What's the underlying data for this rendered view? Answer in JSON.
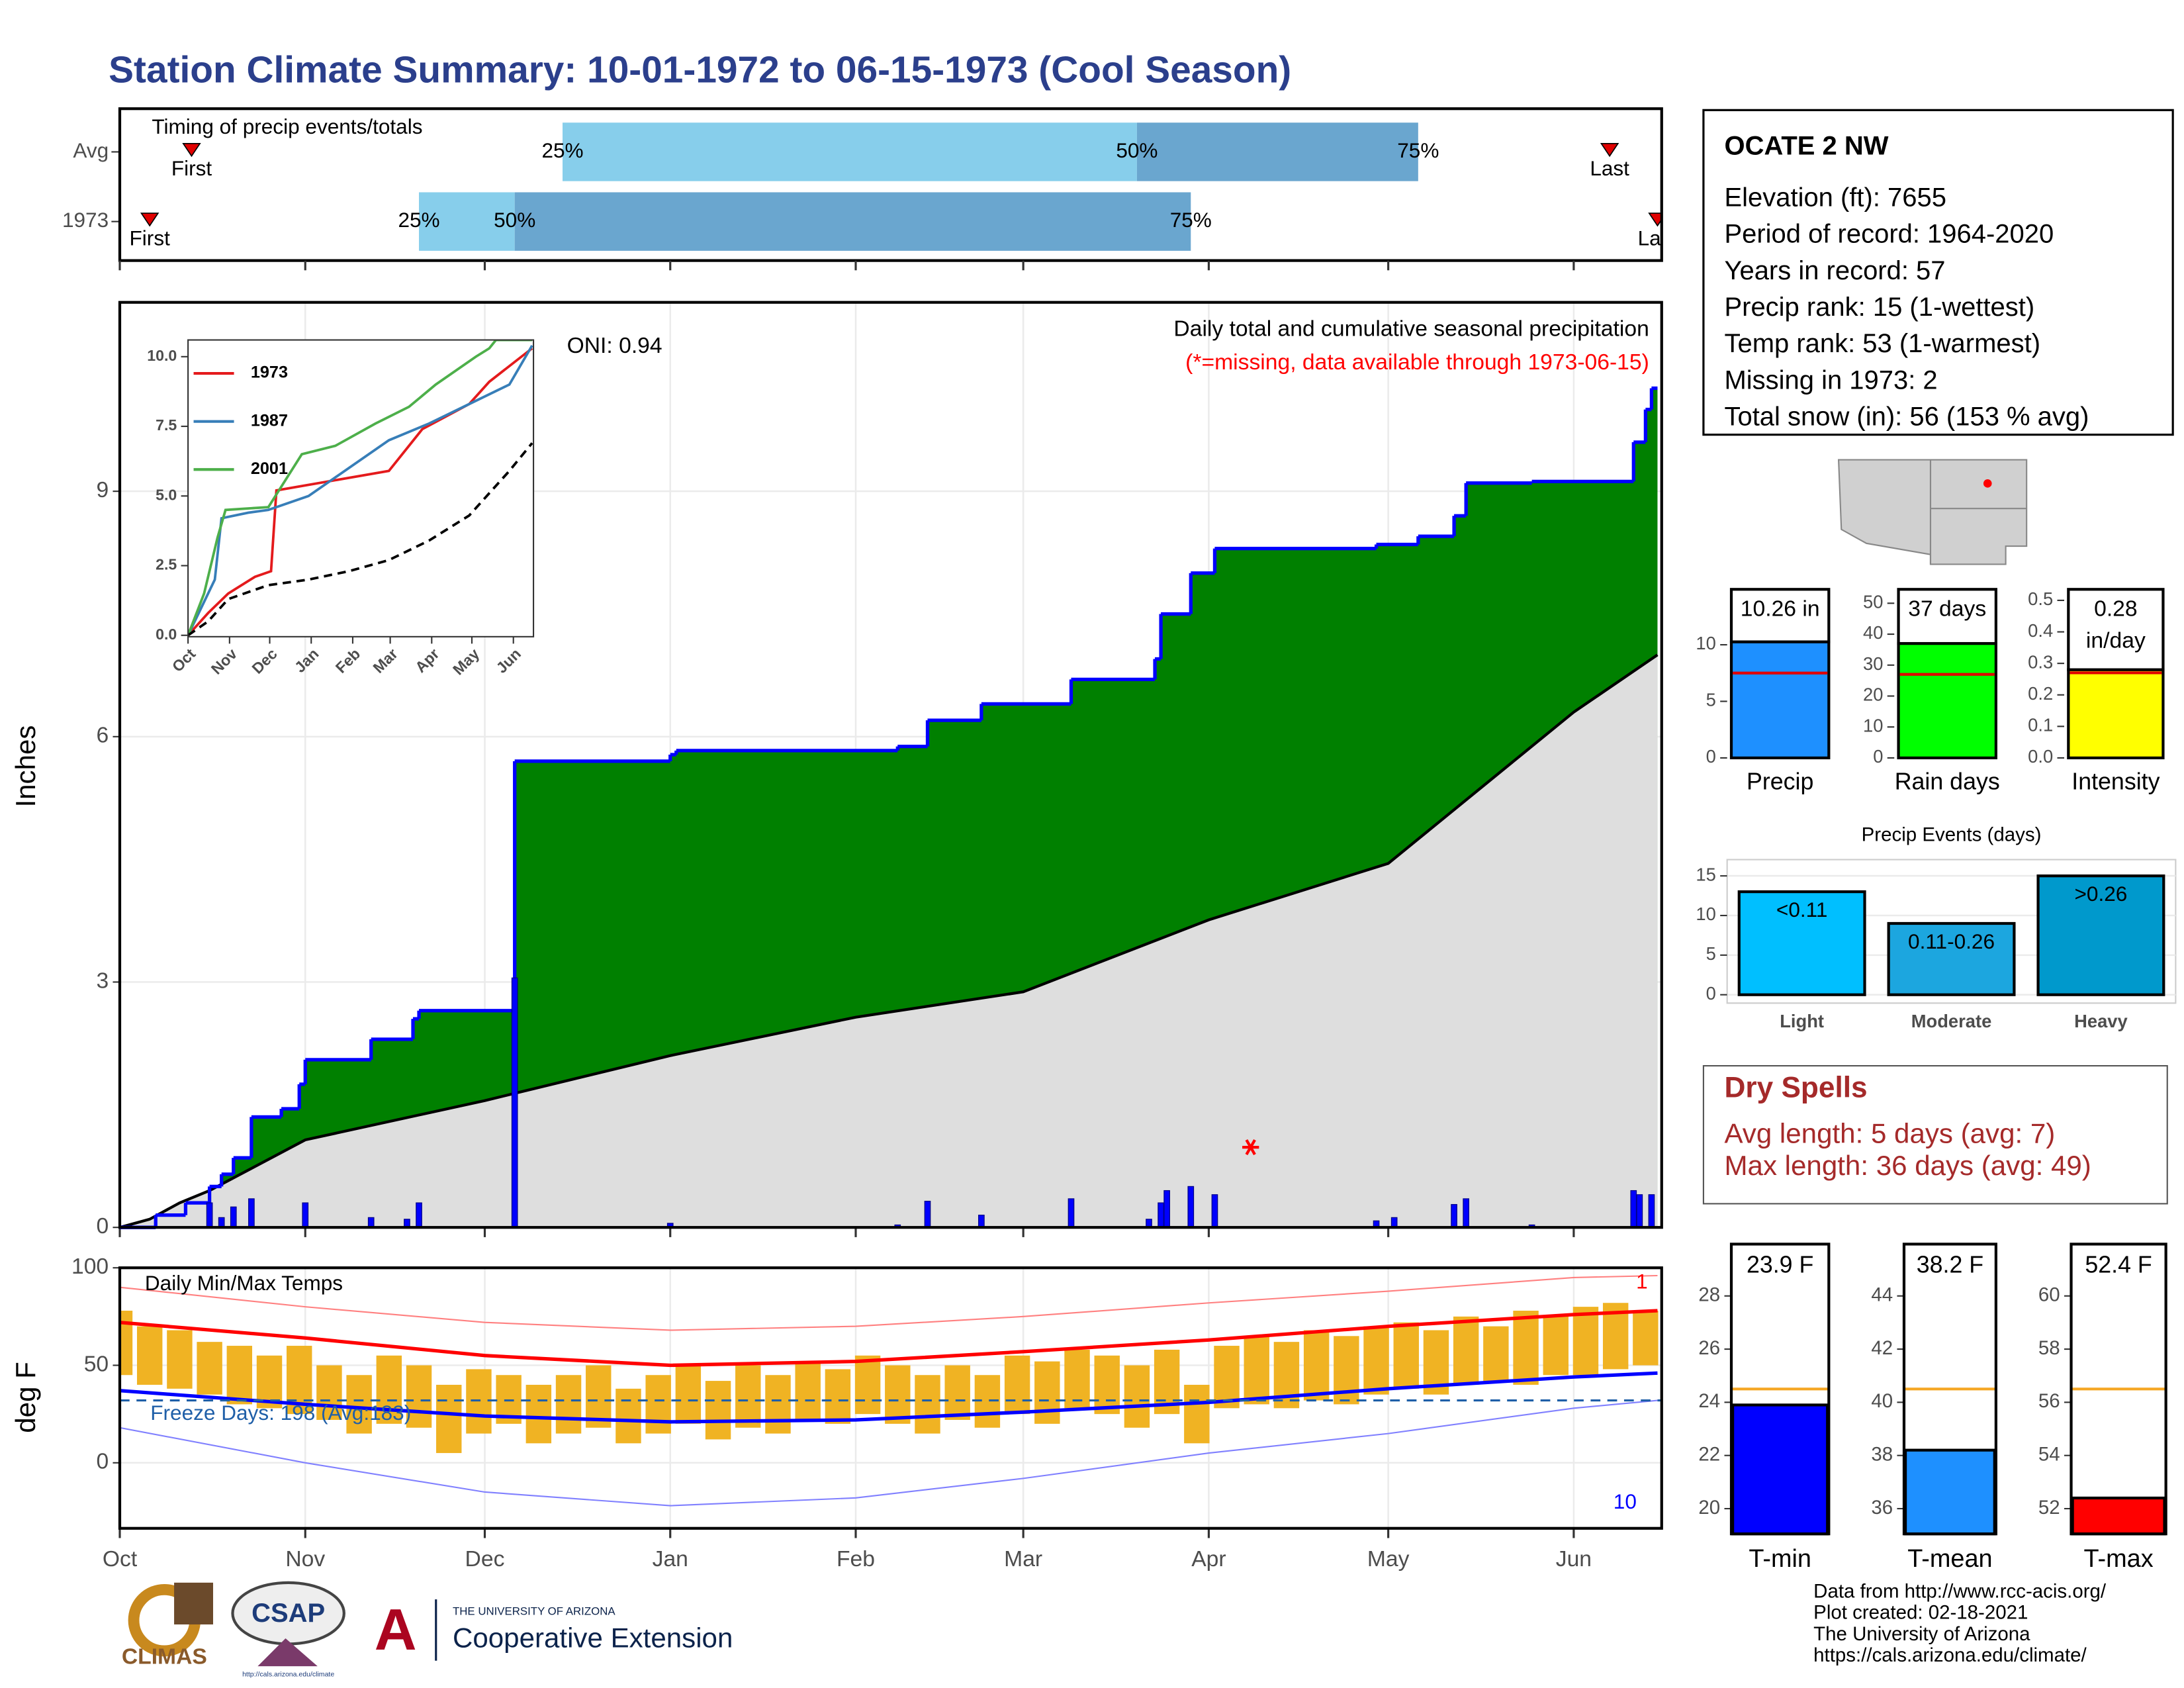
{
  "title": "Station Climate Summary: 10-01-1972 to 06-15-1973 (Cool Season)",
  "station": {
    "name": "OCATE 2 NW",
    "lines": [
      "Elevation (ft): 7655",
      "Period of record: 1964-2020",
      "Years in record: 57",
      "Precip rank: 15 (1-wettest)",
      "Temp rank: 53 (1-warmest)",
      "Missing in 1973: 2",
      "Total snow (in): 56 (153 % avg)"
    ]
  },
  "dry_spells": {
    "title": "Dry Spells",
    "lines": [
      "Avg length: 5 days (avg: 7)",
      "Max length: 36 days (avg: 49)"
    ],
    "color": "#a52a2a"
  },
  "footer": [
    "Data from http://www.rcc-acis.org/",
    "Plot created: 02-18-2021",
    "The University of Arizona",
    "https://cals.arizona.edu/climate/"
  ],
  "logos": {
    "climas": "CLIMAS",
    "csap": "CSAP",
    "csap_url": "http://cals.arizona.edu/climate",
    "ua": "THE UNIVERSITY OF ARIZONA",
    "extension": "Cooperative Extension"
  },
  "chart_data": [
    {
      "type": "range",
      "title": "Timing of precip events/totals",
      "xlim": [
        0,
        257
      ],
      "labels": {
        "first": "First",
        "last": "Last",
        "p25": "25%",
        "p50": "50%",
        "p75": "75%"
      },
      "colors": [
        "#87ceeb",
        "#6aa6cf"
      ],
      "marker_color": "#e00000",
      "rows": [
        {
          "name": "Avg",
          "first": 12,
          "p25": 74,
          "p50": 170,
          "p75": 217,
          "last": 249
        },
        {
          "name": "1973",
          "first": 5,
          "p25": 50,
          "p50": 66,
          "p75": 179,
          "last": 257
        }
      ]
    },
    {
      "type": "cumulative",
      "ylabel": "Inches",
      "oni": "ONI: 0.94",
      "subtitle": "Daily total and cumulative seasonal precipitation",
      "note": "(*=missing, data available through 1973-06-15)",
      "note_color": "#ff0000",
      "xlim": [
        0,
        257
      ],
      "xticks": [
        0,
        31,
        61,
        92,
        123,
        151,
        182,
        212,
        243
      ],
      "ylim": [
        0,
        11.31
      ],
      "yticks": [
        0,
        3,
        6,
        9
      ],
      "grid": true,
      "cumulative": {
        "color": "#008000",
        "line_color": "#0000ff",
        "x": [
          0,
          6,
          11,
          15,
          17,
          19,
          22,
          27,
          30,
          31,
          42,
          49,
          50,
          66,
          92,
          93,
          130,
          135,
          144,
          159,
          173,
          174,
          179,
          183,
          210,
          217,
          223,
          225,
          236,
          253,
          255,
          256
        ],
        "values": [
          0,
          0.15,
          0.3,
          0.5,
          0.65,
          0.85,
          1.35,
          1.45,
          1.75,
          2.05,
          2.3,
          2.55,
          2.65,
          5.7,
          5.78,
          5.83,
          5.88,
          6.2,
          6.4,
          6.7,
          6.95,
          7.5,
          8.0,
          8.3,
          8.35,
          8.45,
          8.7,
          9.1,
          9.12,
          9.6,
          10.0,
          10.26
        ]
      },
      "average": {
        "color": "#dedede",
        "x": [
          0,
          5,
          10,
          15,
          31,
          61,
          92,
          123,
          151,
          182,
          212,
          243,
          257
        ],
        "values": [
          0,
          0.1,
          0.3,
          0.45,
          1.07,
          1.55,
          2.1,
          2.57,
          2.88,
          3.76,
          4.45,
          6.3,
          7.0
        ]
      },
      "daily": {
        "color": "#0000ff",
        "x": [
          15,
          17,
          19,
          22,
          31,
          42,
          48,
          50,
          66,
          92,
          130,
          135,
          144,
          159,
          172,
          174,
          175,
          179,
          183,
          210,
          213,
          223,
          225,
          236,
          253,
          254,
          256
        ],
        "values": [
          0.3,
          0.12,
          0.25,
          0.35,
          0.3,
          0.12,
          0.1,
          0.3,
          3.05,
          0.05,
          0.03,
          0.32,
          0.15,
          0.35,
          0.1,
          0.3,
          0.45,
          0.5,
          0.4,
          0.08,
          0.12,
          0.28,
          0.35,
          0.03,
          0.45,
          0.4,
          0.4
        ]
      },
      "missing": {
        "color": "#ff0000",
        "x": [
          189
        ],
        "values": [
          0.98
        ]
      }
    },
    {
      "type": "line",
      "xlim": [
        0,
        258
      ],
      "xticks": [
        {
          "value": 0,
          "label": "Oct"
        },
        {
          "value": 31,
          "label": "Nov"
        },
        {
          "value": 61,
          "label": "Dec"
        },
        {
          "value": 92,
          "label": "Jan"
        },
        {
          "value": 123,
          "label": "Feb"
        },
        {
          "value": 151,
          "label": "Mar"
        },
        {
          "value": 182,
          "label": "Apr"
        },
        {
          "value": 212,
          "label": "May"
        },
        {
          "value": 243,
          "label": "Jun"
        }
      ],
      "ylim": [
        0,
        10.6
      ],
      "yticks": [
        {
          "value": 0,
          "label": "0.0"
        },
        2.5,
        {
          "value": 5,
          "label": "5.0"
        },
        7.5,
        {
          "value": 10,
          "label": "10.0"
        }
      ],
      "series": [
        {
          "name": "1973",
          "color": "#e41a1c",
          "x": [
            0,
            15,
            30,
            50,
            62,
            66,
            150,
            175,
            210,
            225,
            257
          ],
          "values": [
            0,
            0.8,
            1.5,
            2.1,
            2.3,
            5.2,
            5.9,
            7.4,
            8.3,
            9.1,
            10.3
          ]
        },
        {
          "name": "1987",
          "color": "#377eb8",
          "x": [
            0,
            10,
            20,
            25,
            45,
            60,
            90,
            120,
            150,
            180,
            210,
            240,
            257
          ],
          "values": [
            0,
            1,
            2,
            4.2,
            4.4,
            4.5,
            5.0,
            6.0,
            7.0,
            7.6,
            8.3,
            9.0,
            10.4
          ]
        },
        {
          "name": "2001",
          "color": "#4daf4a",
          "x": [
            0,
            12,
            22,
            28,
            60,
            85,
            110,
            140,
            165,
            185,
            215,
            225,
            230,
            257
          ],
          "values": [
            0,
            1.5,
            3.5,
            4.5,
            4.6,
            6.5,
            6.8,
            7.6,
            8.2,
            9.0,
            10.0,
            10.3,
            10.6,
            10.6
          ]
        },
        {
          "color": "#000000",
          "dash": true,
          "x": [
            0,
            15,
            30,
            60,
            90,
            120,
            150,
            180,
            210,
            240,
            257
          ],
          "values": [
            0,
            0.5,
            1.3,
            1.8,
            2.0,
            2.3,
            2.7,
            3.4,
            4.3,
            5.9,
            6.9
          ]
        }
      ]
    },
    {
      "type": "temperature",
      "title": "Daily Min/Max Temps",
      "ylabel": "deg F",
      "xlim": [
        0,
        257
      ],
      "xticks": [
        {
          "value": 0,
          "label": "Oct"
        },
        {
          "value": 31,
          "label": "Nov"
        },
        {
          "value": 61,
          "label": "Dec"
        },
        {
          "value": 92,
          "label": "Jan"
        },
        {
          "value": 123,
          "label": "Feb"
        },
        {
          "value": 151,
          "label": "Mar"
        },
        {
          "value": 182,
          "label": "Apr"
        },
        {
          "value": 212,
          "label": "May"
        },
        {
          "value": 243,
          "label": "Jun"
        }
      ],
      "ylim": [
        -33.6,
        100
      ],
      "yticks": [
        0,
        50,
        100
      ],
      "grid": true,
      "bar_color": "#f0b323",
      "x_bars": [
        0,
        5,
        10,
        15,
        20,
        25,
        30,
        35,
        40,
        45,
        50,
        55,
        60,
        65,
        70,
        75,
        80,
        85,
        90,
        95,
        100,
        105,
        110,
        115,
        120,
        125,
        130,
        135,
        140,
        145,
        150,
        155,
        160,
        165,
        170,
        175,
        180,
        185,
        190,
        195,
        200,
        205,
        210,
        215,
        220,
        225,
        230,
        235,
        240,
        245,
        250,
        255
      ],
      "lows": [
        45,
        40,
        38,
        35,
        30,
        28,
        25,
        22,
        15,
        20,
        18,
        5,
        15,
        20,
        10,
        15,
        18,
        10,
        15,
        20,
        12,
        18,
        15,
        22,
        20,
        25,
        20,
        15,
        22,
        18,
        25,
        20,
        28,
        25,
        18,
        25,
        10,
        28,
        30,
        28,
        32,
        30,
        35,
        38,
        35,
        40,
        42,
        40,
        45,
        45,
        48,
        50
      ],
      "highs": [
        78,
        70,
        68,
        62,
        60,
        55,
        60,
        50,
        45,
        55,
        50,
        40,
        48,
        45,
        40,
        45,
        50,
        38,
        45,
        50,
        42,
        50,
        45,
        52,
        48,
        55,
        50,
        45,
        50,
        45,
        55,
        52,
        58,
        55,
        50,
        58,
        40,
        60,
        65,
        62,
        68,
        65,
        70,
        72,
        68,
        75,
        70,
        78,
        75,
        80,
        82,
        78
      ],
      "normal_high": {
        "color": "#ff0000",
        "x": [
          0,
          31,
          61,
          92,
          123,
          151,
          182,
          212,
          243,
          257
        ],
        "values": [
          72,
          64,
          55,
          50,
          52,
          57,
          63,
          70,
          76,
          78
        ]
      },
      "normal_low": {
        "color": "#0000ff",
        "x": [
          0,
          31,
          61,
          92,
          123,
          151,
          182,
          212,
          243,
          257
        ],
        "values": [
          37,
          30,
          24,
          21,
          22,
          26,
          31,
          38,
          44,
          46
        ]
      },
      "record_high": {
        "color": "#ff8080",
        "x": [
          0,
          31,
          61,
          92,
          123,
          151,
          182,
          212,
          243,
          257
        ],
        "values": [
          90,
          80,
          72,
          68,
          70,
          75,
          82,
          88,
          95,
          96
        ]
      },
      "record_low": {
        "color": "#8080ff",
        "x": [
          0,
          31,
          61,
          92,
          123,
          151,
          182,
          212,
          243,
          257
        ],
        "values": [
          18,
          0,
          -15,
          -22,
          -18,
          -8,
          5,
          15,
          28,
          32
        ]
      },
      "freeze": 32,
      "freeze_color": "#1f5fa8",
      "freeze_label": "Freeze Days: 198 (Avg:183)",
      "record_high_count": 1,
      "record_low_count": 10
    },
    {
      "type": "box_bar",
      "category": "Precip",
      "values": [
        10.26
      ],
      "value_labels": [
        "10.26 in"
      ],
      "avg": 7.5,
      "avg_color": "#e00000",
      "color": "#1e90ff",
      "ylim": [
        0,
        14.9
      ],
      "yticks": [
        0,
        5,
        10
      ]
    },
    {
      "type": "box_bar",
      "category": "Rain days",
      "values": [
        37
      ],
      "value_labels": [
        "37 days"
      ],
      "avg": 27,
      "avg_color": "#e00000",
      "color": "#00ff00",
      "ylim": [
        0,
        54.5
      ],
      "yticks": [
        0,
        10,
        20,
        30,
        40,
        50
      ]
    },
    {
      "type": "box_bar",
      "category": "Intensity",
      "values": [
        0.28
      ],
      "value_labels": [
        "0.28\nin/day"
      ],
      "avg": 0.27,
      "avg_color": "#e00000",
      "color": "#ffff00",
      "ylim": [
        0,
        0.535
      ],
      "yticks": [
        {
          "value": 0,
          "label": "0.0"
        },
        0.1,
        0.2,
        0.3,
        0.4,
        0.5
      ]
    },
    {
      "type": "bar",
      "title": "Precip Events (days)",
      "categories": [
        "Light",
        "Moderate",
        "Heavy"
      ],
      "values": [
        13,
        9,
        15
      ],
      "value_labels": [
        "<0.11",
        "0.11-0.26",
        ">0.26"
      ],
      "colors": [
        "#00bfff",
        "#1ca6df",
        "#0099cc"
      ],
      "ylim": [
        0,
        16
      ],
      "yticks": [
        0,
        5,
        10,
        15
      ],
      "grid": true
    },
    {
      "type": "temp_box",
      "category": "T-min",
      "values": [
        23.9
      ],
      "value_labels": [
        "23.9 F"
      ],
      "avg": 24.5,
      "avg_color": "#f5a623",
      "color": "#0000ff",
      "ylim": [
        19.05,
        29.95
      ],
      "yticks": [
        20,
        22,
        24,
        26,
        28
      ]
    },
    {
      "type": "temp_box",
      "category": "T-mean",
      "values": [
        38.2
      ],
      "value_labels": [
        "38.2 F"
      ],
      "avg": 40.5,
      "avg_color": "#f5a623",
      "color": "#1e90ff",
      "ylim": [
        35.05,
        45.95
      ],
      "yticks": [
        36,
        38,
        40,
        42,
        44
      ]
    },
    {
      "type": "temp_box",
      "category": "T-max",
      "values": [
        52.4
      ],
      "value_labels": [
        "52.4 F"
      ],
      "avg": 56.5,
      "avg_color": "#f5a623",
      "color": "#ff0000",
      "ylim": [
        51.05,
        61.95
      ],
      "yticks": [
        52,
        54,
        56,
        58,
        60
      ]
    }
  ]
}
